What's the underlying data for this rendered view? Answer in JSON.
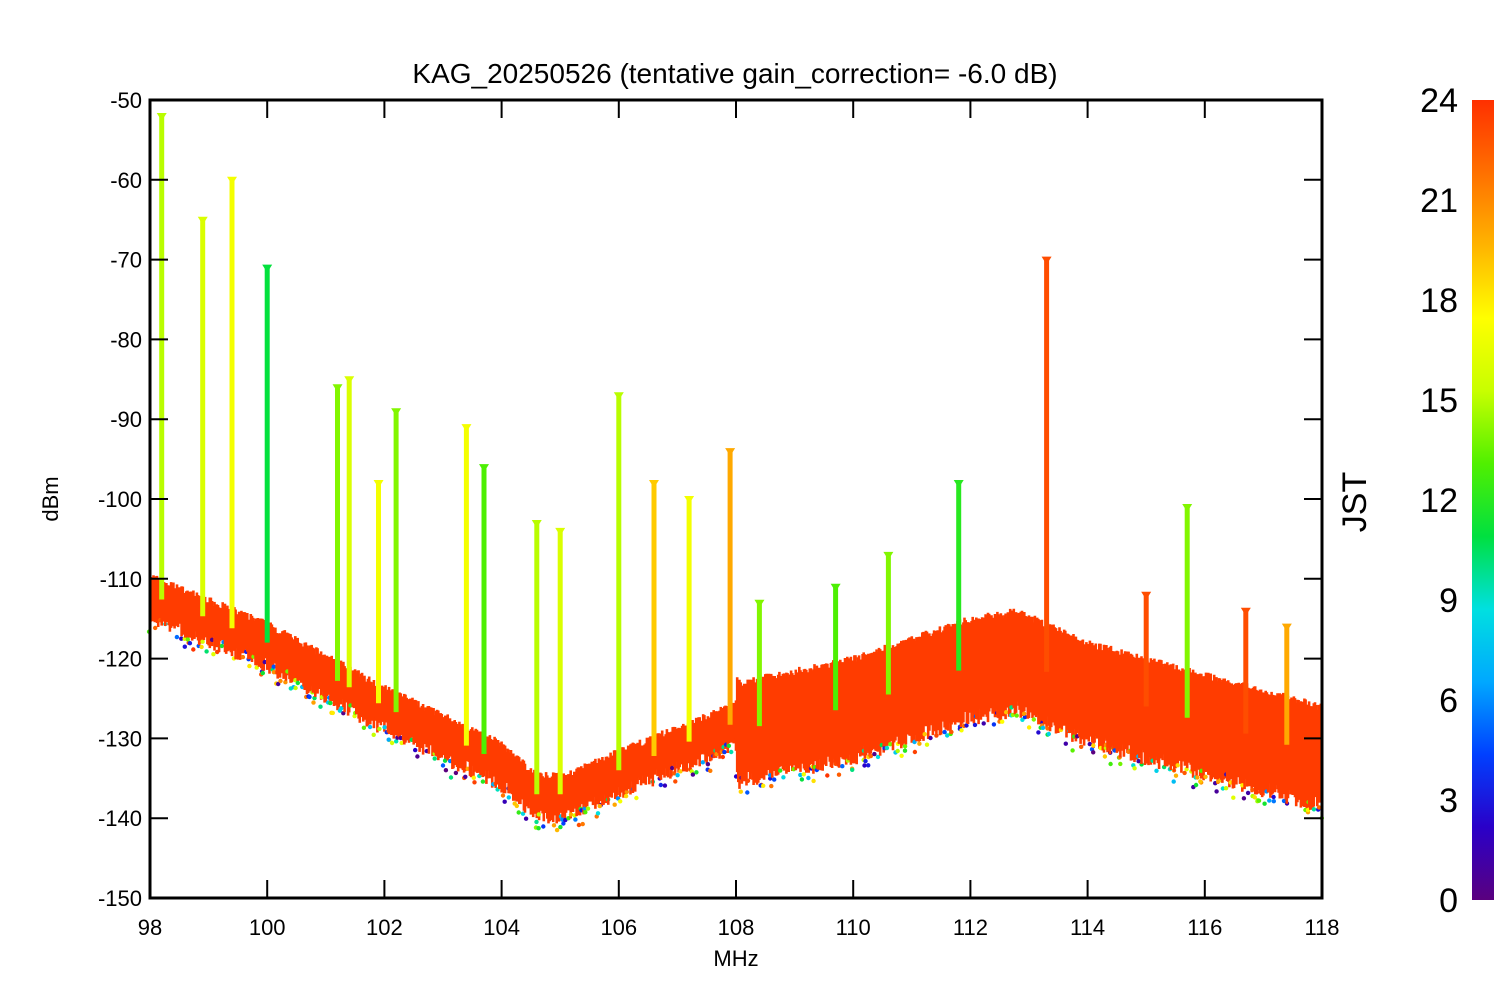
{
  "chart_data": {
    "type": "scatter",
    "title": "KAG_20250526 (tentative gain_correction= -6.0 dB)",
    "xlabel": "MHz",
    "ylabel": "dBm",
    "xlim": [
      98,
      118
    ],
    "ylim": [
      -150,
      -50
    ],
    "x_ticks": [
      "98",
      "100",
      "102",
      "104",
      "106",
      "108",
      "110",
      "112",
      "114",
      "116",
      "118"
    ],
    "y_ticks": [
      "-50",
      "-60",
      "-70",
      "-80",
      "-90",
      "-100",
      "-110",
      "-120",
      "-130",
      "-140",
      "-150"
    ],
    "colorbar": {
      "label": "JST",
      "range": [
        0,
        24
      ],
      "ticks": [
        "0",
        "3",
        "6",
        "9",
        "12",
        "15",
        "18",
        "21",
        "24"
      ],
      "colormap": [
        "#5a007f",
        "#2a00c8",
        "#0040ff",
        "#00a8ff",
        "#00e0e0",
        "#00e040",
        "#50f000",
        "#c8ff00",
        "#ffff00",
        "#ffb400",
        "#ff7000",
        "#ff3000"
      ]
    },
    "noise_floor": {
      "x": [
        98,
        100,
        102,
        104,
        104.6,
        104.9,
        105.1,
        106,
        107,
        108,
        108.05,
        110,
        112,
        112.8,
        114,
        116,
        118
      ],
      "y": [
        -112,
        -118,
        -126,
        -133,
        -137,
        -137,
        -137,
        -134,
        -131,
        -128,
        -129,
        -126,
        -121,
        -120,
        -124,
        -128,
        -132
      ]
    },
    "signal_peaks": [
      {
        "x": 98.2,
        "y": -52,
        "jst": 15
      },
      {
        "x": 98.9,
        "y": -65,
        "jst": 16
      },
      {
        "x": 99.4,
        "y": -60,
        "jst": 17
      },
      {
        "x": 100.0,
        "y": -71,
        "jst": 11
      },
      {
        "x": 101.2,
        "y": -86,
        "jst": 14
      },
      {
        "x": 101.4,
        "y": -85,
        "jst": 16
      },
      {
        "x": 101.9,
        "y": -98,
        "jst": 17
      },
      {
        "x": 102.2,
        "y": -89,
        "jst": 14
      },
      {
        "x": 103.4,
        "y": -91,
        "jst": 17
      },
      {
        "x": 103.7,
        "y": -96,
        "jst": 13
      },
      {
        "x": 104.6,
        "y": -103,
        "jst": 15
      },
      {
        "x": 105.0,
        "y": -104,
        "jst": 16
      },
      {
        "x": 106.0,
        "y": -87,
        "jst": 15
      },
      {
        "x": 106.6,
        "y": -98,
        "jst": 19
      },
      {
        "x": 107.2,
        "y": -100,
        "jst": 17
      },
      {
        "x": 107.9,
        "y": -94,
        "jst": 20
      },
      {
        "x": 108.4,
        "y": -113,
        "jst": 14
      },
      {
        "x": 109.7,
        "y": -111,
        "jst": 13
      },
      {
        "x": 110.6,
        "y": -107,
        "jst": 14
      },
      {
        "x": 111.8,
        "y": -98,
        "jst": 12
      },
      {
        "x": 113.3,
        "y": -70,
        "jst": 23
      },
      {
        "x": 115.0,
        "y": -112,
        "jst": 23
      },
      {
        "x": 115.7,
        "y": -101,
        "jst": 14
      },
      {
        "x": 116.7,
        "y": -114,
        "jst": 23
      },
      {
        "x": 117.4,
        "y": -116,
        "jst": 20
      }
    ]
  }
}
